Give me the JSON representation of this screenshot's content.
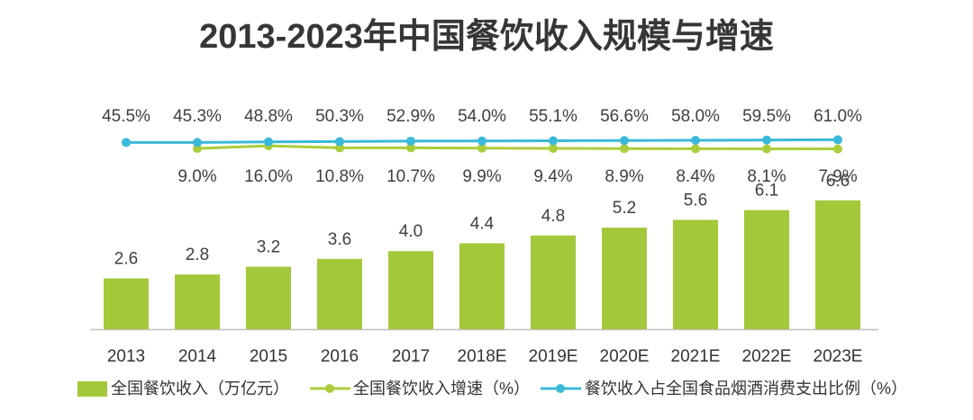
{
  "chart_data": {
    "type": "bar",
    "title": "2013-2023年中国餐饮收入规模与增速",
    "categories": [
      "2013",
      "2014",
      "2015",
      "2016",
      "2017",
      "2018E",
      "2019E",
      "2020E",
      "2021E",
      "2022E",
      "2023E"
    ],
    "series": [
      {
        "name": "全国餐饮收入（万亿元）",
        "type": "bar",
        "color": "#a3c83a",
        "value_suffix": "",
        "values": [
          2.6,
          2.8,
          3.2,
          3.6,
          4.0,
          4.4,
          4.8,
          5.2,
          5.6,
          6.1,
          6.6
        ]
      },
      {
        "name": "全国餐饮收入增速（%）",
        "type": "line",
        "color": "#abcd3b",
        "value_suffix": "%",
        "values": [
          null,
          9.0,
          16.0,
          10.8,
          10.7,
          9.9,
          9.4,
          8.9,
          8.4,
          8.1,
          7.9
        ]
      },
      {
        "name": "餐饮收入占全国食品烟酒消费支出比例（%）",
        "type": "line",
        "color": "#3bb9da",
        "value_suffix": "%",
        "values": [
          45.5,
          45.3,
          48.8,
          50.3,
          52.9,
          54.0,
          55.1,
          56.6,
          58.0,
          59.5,
          61.0
        ]
      }
    ],
    "legend_position": "bottom",
    "grid": false
  }
}
